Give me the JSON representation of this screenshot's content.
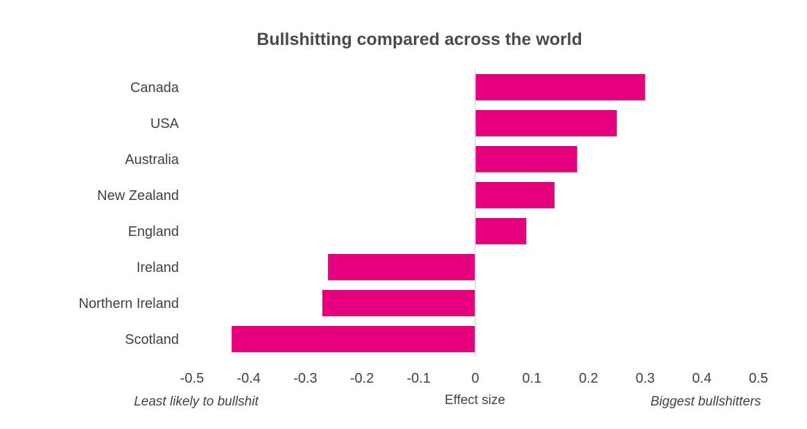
{
  "chart_data": {
    "type": "bar",
    "orientation": "horizontal",
    "title": "Bullshitting  compared across the world",
    "categories": [
      "Canada",
      "USA",
      "Australia",
      "New Zealand",
      "England",
      "Ireland",
      "Northern Ireland",
      "Scotland"
    ],
    "values": [
      0.3,
      0.25,
      0.18,
      0.14,
      0.09,
      -0.26,
      -0.27,
      -0.43
    ],
    "xlabel": "Effect size",
    "xlabel_left": "Least likely to bullshit",
    "xlabel_right": "Biggest bullshitters",
    "xlim": [
      -0.5,
      0.5
    ],
    "xticks": [
      "-0.5",
      "-0.4",
      "-0.3",
      "-0.2",
      "-0.1",
      "0",
      "0.1",
      "0.2",
      "0.3",
      "0.4",
      "0.5"
    ],
    "bar_color": "#e6007e",
    "axis_color": "#d0d8e8",
    "grid": false,
    "legend": "none"
  }
}
